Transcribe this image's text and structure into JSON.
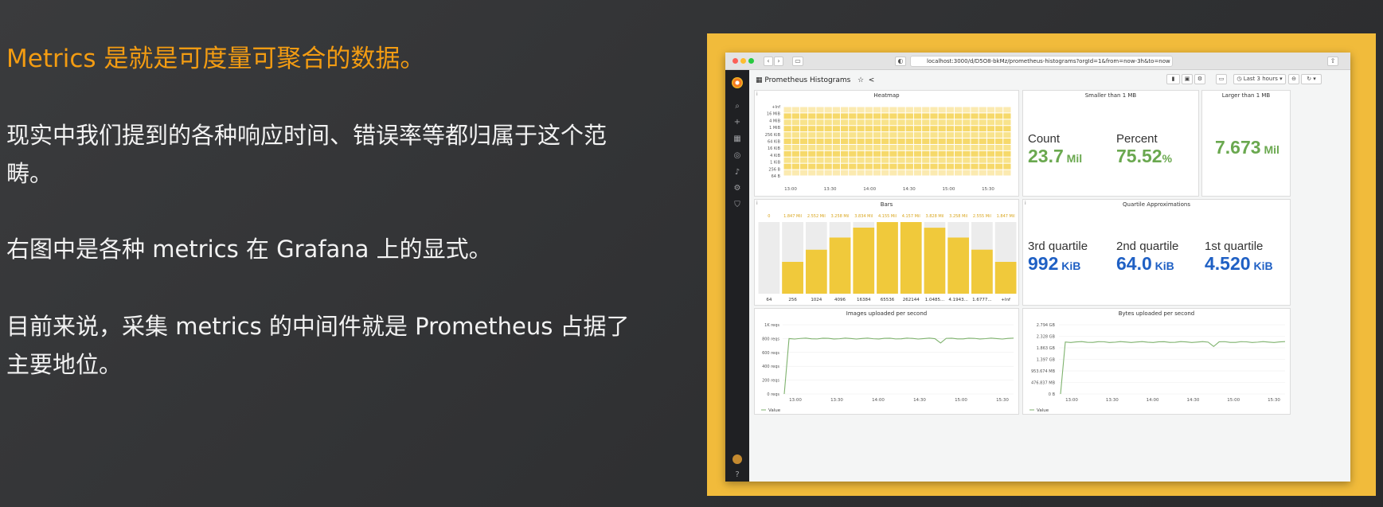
{
  "slide": {
    "headline": "Metrics 是就是可度量可聚合的数据。",
    "paragraphs": [
      "现实中我们提到的各种响应时间、错误率等都归属于这个范畴。",
      "右图中是各种 metrics 在 Grafana 上的显式。",
      "目前来说，采集 metrics 的中间件就是 Prometheus 占据了主要地位。"
    ]
  },
  "browser": {
    "url": "localhost:3000/d/D5O8-bkMz/prometheus-histograms?orgId=1&from=now-3h&to=now",
    "nav_back": "‹",
    "nav_forward": "›"
  },
  "dashboard": {
    "title": "Prometheus Histograms",
    "time_range": "Last 3 hours",
    "panels": {
      "heatmap": {
        "title": "Heatmap",
        "y_ticks": [
          "+Inf",
          "16 MiB",
          "4 MiB",
          "1 MiB",
          "256 KiB",
          "64 KiB",
          "16 KiB",
          "4 KiB",
          "1 KiB",
          "256 B",
          "64 B"
        ],
        "x_ticks": [
          "13:00",
          "13:30",
          "14:00",
          "14:30",
          "15:00",
          "15:30"
        ]
      },
      "smaller": {
        "title": "Smaller than 1 MB",
        "stats": [
          {
            "label": "Count",
            "value": "23.7",
            "unit": " Mil"
          },
          {
            "label": "Percent",
            "value": "75.52",
            "unit": "%"
          }
        ]
      },
      "larger": {
        "title": "Larger than 1 MB",
        "value": "7.673",
        "unit": " Mil"
      },
      "bars": {
        "title": "Bars",
        "categories": [
          "64",
          "256",
          "1024",
          "4096",
          "16384",
          "65536",
          "262144",
          "1.0485...",
          "4.1943...",
          "1.6777...",
          "+Inf"
        ],
        "top_labels": [
          "0",
          "1.847 Mil",
          "2.552 Mil",
          "3.258 Mil",
          "3.834 Mil",
          "4.155 Mil",
          "4.157 Mil",
          "3.828 Mil",
          "3.258 Mil",
          "2.555 Mil",
          "1.847 Mil"
        ],
        "values": [
          0,
          1.847,
          2.552,
          3.258,
          3.834,
          4.155,
          4.157,
          3.828,
          3.258,
          2.555,
          1.847
        ],
        "max": 4.157,
        "bar_color": "#f0c93b"
      },
      "quartiles": {
        "title": "Quartile Approximations",
        "stats": [
          {
            "label": "3rd quartile",
            "value": "992",
            "unit": " KiB"
          },
          {
            "label": "2nd quartile",
            "value": "64.0",
            "unit": " KiB"
          },
          {
            "label": "1st quartile",
            "value": "4.520",
            "unit": " KiB"
          }
        ]
      },
      "images": {
        "title": "Images uploaded per second",
        "y_ticks": [
          "1K reqs",
          "800 reqs",
          "600 reqs",
          "400 reqs",
          "200 reqs",
          "0 reqs"
        ],
        "x_ticks": [
          "13:00",
          "13:30",
          "14:00",
          "14:30",
          "15:00",
          "15:30"
        ],
        "legend": "Value"
      },
      "bytes": {
        "title": "Bytes uploaded per second",
        "y_ticks": [
          "2.794 GB",
          "2.328 GB",
          "1.863 GB",
          "1.397 GB",
          "953.674 MB",
          "476.837 MB",
          "0 B"
        ],
        "x_ticks": [
          "13:00",
          "13:30",
          "14:00",
          "14:30",
          "15:00",
          "15:30"
        ],
        "legend": "Value"
      }
    }
  },
  "colors": {
    "accent": "#f39c12",
    "frame": "#f1bb3b",
    "stat_green": "#6aa84f",
    "stat_blue": "#1f60c4",
    "line_green": "#7eb26d"
  }
}
